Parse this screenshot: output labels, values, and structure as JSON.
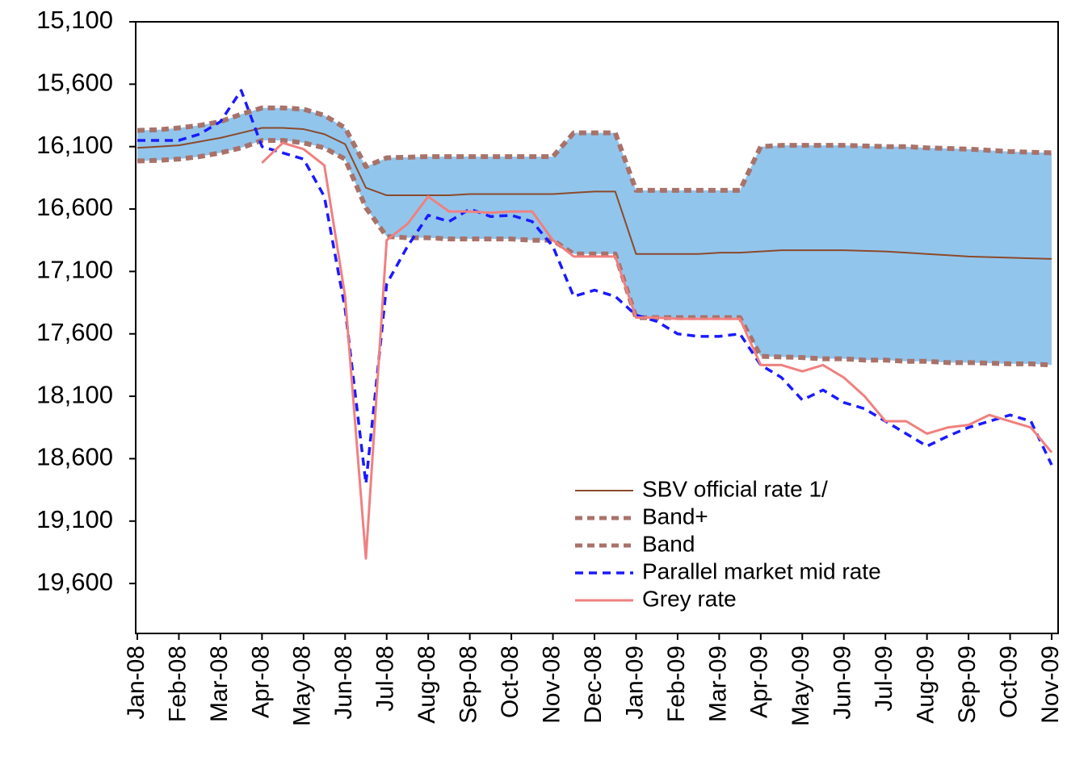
{
  "chart_data": {
    "type": "line",
    "categories": [
      "Jan-08",
      null,
      "Feb-08",
      null,
      "Mar-08",
      null,
      "Apr-08",
      null,
      "May-08",
      null,
      "Jun-08",
      null,
      "Jul-08",
      null,
      "Aug-08",
      null,
      "Sep-08",
      null,
      "Oct-08",
      null,
      "Nov-08",
      null,
      "Dec-08",
      null,
      "Jan-09",
      null,
      "Feb-09",
      null,
      "Mar-09",
      null,
      "Apr-09",
      null,
      "May-09",
      null,
      "Jun-09",
      null,
      "Jul-09",
      null,
      "Aug-09",
      null,
      "Sep-09",
      null,
      "Oct-09",
      null,
      "Nov-09"
    ],
    "ylim": [
      15100,
      20000
    ],
    "y_inverted": true,
    "yticks": [
      {
        "value": 15100,
        "label": "15,100"
      },
      {
        "value": 15600,
        "label": "15,600"
      },
      {
        "value": 16100,
        "label": "16,100"
      },
      {
        "value": 16600,
        "label": "16,600"
      },
      {
        "value": 17100,
        "label": "17,100"
      },
      {
        "value": 17600,
        "label": "17,600"
      },
      {
        "value": 18100,
        "label": "18,100"
      },
      {
        "value": 18600,
        "label": "18,600"
      },
      {
        "value": 19100,
        "label": "19,100"
      },
      {
        "value": 19600,
        "label": "19,600"
      }
    ],
    "band_fill_color": "#92c5ec",
    "series": [
      {
        "name": "SBV official rate 1/",
        "color": "#8b4a2b",
        "style": "solid",
        "width": 2,
        "values": [
          16110,
          16100,
          16090,
          16060,
          16030,
          15990,
          15950,
          15950,
          15960,
          16000,
          16080,
          16430,
          16490,
          16490,
          16490,
          16490,
          16480,
          16480,
          16480,
          16480,
          16480,
          16470,
          16460,
          16460,
          16960,
          16960,
          16960,
          16960,
          16950,
          16950,
          16940,
          16930,
          16930,
          16930,
          16930,
          16935,
          16940,
          16950,
          16960,
          16970,
          16980,
          16985,
          16990,
          16995,
          17000
        ]
      },
      {
        "name": "Band+",
        "color": "#a8726a",
        "style": "dashed",
        "width": 6,
        "values": [
          15970,
          15965,
          15950,
          15930,
          15900,
          15840,
          15790,
          15790,
          15800,
          15850,
          15950,
          16260,
          16190,
          16185,
          16180,
          16180,
          16180,
          16180,
          16180,
          16180,
          16180,
          15990,
          15990,
          15990,
          16450,
          16450,
          16450,
          16450,
          16450,
          16450,
          16100,
          16090,
          16090,
          16090,
          16090,
          16095,
          16100,
          16100,
          16110,
          16115,
          16120,
          16130,
          16140,
          16145,
          16150
        ]
      },
      {
        "name": "Band",
        "color": "#a8726a",
        "style": "dashed",
        "width": 6,
        "values": [
          16215,
          16210,
          16200,
          16180,
          16150,
          16110,
          16050,
          16050,
          16070,
          16110,
          16200,
          16590,
          16820,
          16830,
          16830,
          16840,
          16840,
          16840,
          16840,
          16850,
          16850,
          16960,
          16960,
          16960,
          17470,
          17470,
          17470,
          17470,
          17470,
          17470,
          17780,
          17785,
          17790,
          17800,
          17800,
          17810,
          17810,
          17820,
          17820,
          17830,
          17830,
          17835,
          17840,
          17840,
          17850
        ]
      },
      {
        "name": "Parallel market mid rate",
        "color": "#1a1aff",
        "style": "dotted",
        "width": 3.5,
        "values": [
          16050,
          16050,
          16050,
          16000,
          15900,
          15650,
          16100,
          16150,
          16200,
          16500,
          17400,
          18800,
          17200,
          16900,
          16650,
          16700,
          16600,
          16660,
          16650,
          16700,
          16900,
          17300,
          17250,
          17300,
          17450,
          17500,
          17600,
          17620,
          17620,
          17600,
          17850,
          17950,
          18130,
          18050,
          18150,
          18200,
          18300,
          18400,
          18500,
          18420,
          18350,
          18300,
          18250,
          18300,
          18650
        ]
      },
      {
        "name": "Grey rate",
        "color": "#f08080",
        "style": "solid",
        "width": 3,
        "values": [
          null,
          null,
          null,
          null,
          null,
          null,
          16230,
          16070,
          16120,
          16250,
          17300,
          19400,
          16850,
          16720,
          16500,
          16620,
          16620,
          16630,
          16620,
          16620,
          16850,
          16980,
          16980,
          16980,
          17470,
          17470,
          17480,
          17480,
          17480,
          17480,
          17850,
          17850,
          17900,
          17850,
          17950,
          18100,
          18300,
          18300,
          18400,
          18350,
          18330,
          18250,
          18300,
          18350,
          18550
        ]
      }
    ]
  }
}
